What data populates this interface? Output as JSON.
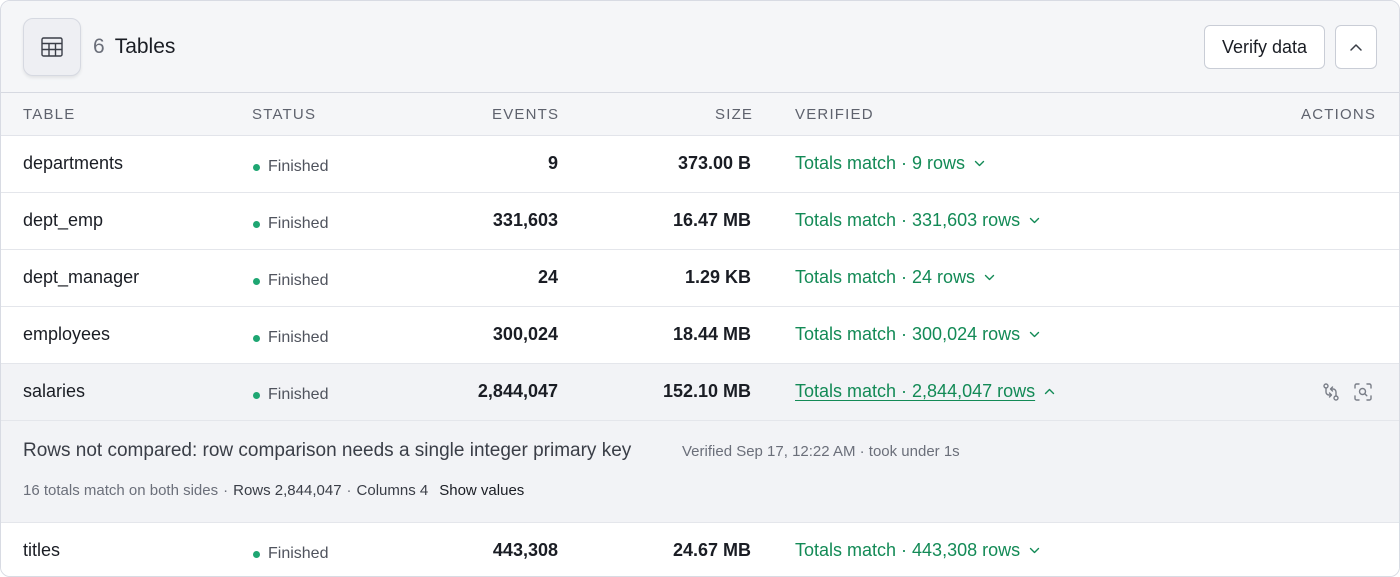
{
  "header": {
    "table_count": "6",
    "title": "Tables",
    "verify_label": "Verify data",
    "table_icon": "table-grid-icon",
    "collapse_icon": "chevron-up-icon"
  },
  "columns": {
    "table": "TABLE",
    "status": "STATUS",
    "events": "EVENTS",
    "size": "SIZE",
    "verified": "VERIFIED",
    "actions": "ACTIONS"
  },
  "rows": [
    {
      "name": "departments",
      "status": "Finished",
      "events": "9",
      "size": "373.00 B",
      "verified": "Totals match · 9 rows"
    },
    {
      "name": "dept_emp",
      "status": "Finished",
      "events": "331,603",
      "size": "16.47 MB",
      "verified": "Totals match · 331,603 rows"
    },
    {
      "name": "dept_manager",
      "status": "Finished",
      "events": "24",
      "size": "1.29 KB",
      "verified": "Totals match · 24 rows"
    },
    {
      "name": "employees",
      "status": "Finished",
      "events": "300,024",
      "size": "18.44 MB",
      "verified": "Totals match · 300,024 rows"
    },
    {
      "name": "salaries",
      "status": "Finished",
      "events": "2,844,047",
      "size": "152.10 MB",
      "verified": "Totals match · 2,844,047 rows"
    },
    {
      "name": "titles",
      "status": "Finished",
      "events": "443,308",
      "size": "24.67 MB",
      "verified": "Totals match · 443,308 rows"
    }
  ],
  "details": {
    "message": "Rows not compared: row comparison needs a single integer primary key",
    "meta": "Verified Sep 17, 12:22 AM · took under 1s",
    "totals": "16 totals match on both sides",
    "rows_label": "Rows 2,844,047",
    "columns_label": "Columns 4",
    "show_values": "Show values"
  },
  "colors": {
    "status_dot": "#1ea672",
    "verified_text": "#138a56",
    "header_bg": "#f5f6f8",
    "selected_bg": "#f2f3f6"
  },
  "icons": {
    "row_action_1": "compare-arrows-icon",
    "row_action_2": "inspect-search-icon"
  }
}
